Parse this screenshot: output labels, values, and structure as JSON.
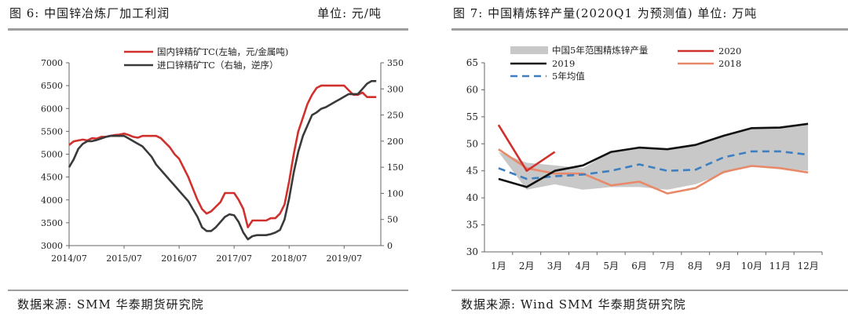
{
  "left_panel": {
    "title": "图 6:  中国锌冶炼厂加工利润",
    "unit": "单位:  元/吨",
    "source": "数据来源:  SMM  华泰期货研究院"
  },
  "right_panel": {
    "title": "图 7:  中国精炼锌产量(2020Q1 为预测值)  单位:  万吨",
    "source": "数据来源:  Wind SMM  华泰期货研究院"
  },
  "chart_data": [
    {
      "type": "line",
      "x_type": "date",
      "x_ticks": [
        "2014/07",
        "2015/07",
        "2016/07",
        "2017/07",
        "2018/07",
        "2019/07"
      ],
      "xlim": [
        "2014/07",
        "2020/03"
      ],
      "ylim_left": [
        3000,
        7000
      ],
      "yticks_left": [
        3000,
        3500,
        4000,
        4500,
        5000,
        5500,
        6000,
        6500,
        7000
      ],
      "ylim_right": [
        0,
        350
      ],
      "yticks_right": [
        0,
        50,
        100,
        150,
        200,
        250,
        300,
        350
      ],
      "right_axis_inverted_note": "逆序",
      "grid": false,
      "legend_position": "top",
      "series": [
        {
          "name": "国内锌精矿TC(左轴，元/金属吨)",
          "axis": "left",
          "color": "#d0312d",
          "points": [
            [
              "2014/07",
              5200
            ],
            [
              "2014/08",
              5280
            ],
            [
              "2014/09",
              5300
            ],
            [
              "2014/10",
              5320
            ],
            [
              "2014/11",
              5300
            ],
            [
              "2014/12",
              5350
            ],
            [
              "2015/01",
              5340
            ],
            [
              "2015/02",
              5380
            ],
            [
              "2015/03",
              5380
            ],
            [
              "2015/04",
              5400
            ],
            [
              "2015/05",
              5420
            ],
            [
              "2015/06",
              5430
            ],
            [
              "2015/07",
              5450
            ],
            [
              "2015/08",
              5420
            ],
            [
              "2015/09",
              5380
            ],
            [
              "2015/10",
              5360
            ],
            [
              "2015/11",
              5400
            ],
            [
              "2015/12",
              5400
            ],
            [
              "2016/01",
              5400
            ],
            [
              "2016/02",
              5400
            ],
            [
              "2016/03",
              5350
            ],
            [
              "2016/04",
              5250
            ],
            [
              "2016/05",
              5150
            ],
            [
              "2016/06",
              5000
            ],
            [
              "2016/07",
              4900
            ],
            [
              "2016/08",
              4700
            ],
            [
              "2016/09",
              4500
            ],
            [
              "2016/10",
              4250
            ],
            [
              "2016/11",
              4000
            ],
            [
              "2016/12",
              3800
            ],
            [
              "2017/01",
              3700
            ],
            [
              "2017/02",
              3750
            ],
            [
              "2017/03",
              3850
            ],
            [
              "2017/04",
              3950
            ],
            [
              "2017/05",
              4150
            ],
            [
              "2017/06",
              4150
            ],
            [
              "2017/07",
              4150
            ],
            [
              "2017/08",
              4000
            ],
            [
              "2017/09",
              3800
            ],
            [
              "2017/10",
              3400
            ],
            [
              "2017/11",
              3550
            ],
            [
              "2017/12",
              3550
            ],
            [
              "2018/01",
              3550
            ],
            [
              "2018/02",
              3550
            ],
            [
              "2018/03",
              3600
            ],
            [
              "2018/04",
              3600
            ],
            [
              "2018/05",
              3700
            ],
            [
              "2018/06",
              3900
            ],
            [
              "2018/07",
              4400
            ],
            [
              "2018/08",
              5000
            ],
            [
              "2018/09",
              5500
            ],
            [
              "2018/10",
              5800
            ],
            [
              "2018/11",
              6100
            ],
            [
              "2018/12",
              6300
            ],
            [
              "2019/01",
              6450
            ],
            [
              "2019/02",
              6500
            ],
            [
              "2019/03",
              6500
            ],
            [
              "2019/04",
              6500
            ],
            [
              "2019/05",
              6500
            ],
            [
              "2019/06",
              6500
            ],
            [
              "2019/07",
              6500
            ],
            [
              "2019/08",
              6400
            ],
            [
              "2019/09",
              6300
            ],
            [
              "2019/10",
              6300
            ],
            [
              "2019/11",
              6350
            ],
            [
              "2019/12",
              6250
            ],
            [
              "2020/01",
              6250
            ],
            [
              "2020/02",
              6250
            ]
          ]
        },
        {
          "name": "进口锌精矿TC（右轴，逆序）",
          "axis": "right",
          "color": "#3a3a3a",
          "points": [
            [
              "2014/07",
              150
            ],
            [
              "2014/08",
              165
            ],
            [
              "2014/09",
              185
            ],
            [
              "2014/10",
              195
            ],
            [
              "2014/11",
              200
            ],
            [
              "2014/12",
              200
            ],
            [
              "2015/01",
              202
            ],
            [
              "2015/02",
              205
            ],
            [
              "2015/03",
              208
            ],
            [
              "2015/04",
              210
            ],
            [
              "2015/05",
              210
            ],
            [
              "2015/06",
              210
            ],
            [
              "2015/07",
              210
            ],
            [
              "2015/08",
              205
            ],
            [
              "2015/09",
              200
            ],
            [
              "2015/10",
              195
            ],
            [
              "2015/11",
              190
            ],
            [
              "2015/12",
              180
            ],
            [
              "2016/01",
              170
            ],
            [
              "2016/02",
              155
            ],
            [
              "2016/03",
              145
            ],
            [
              "2016/04",
              135
            ],
            [
              "2016/05",
              125
            ],
            [
              "2016/06",
              115
            ],
            [
              "2016/07",
              105
            ],
            [
              "2016/08",
              95
            ],
            [
              "2016/09",
              85
            ],
            [
              "2016/10",
              70
            ],
            [
              "2016/11",
              55
            ],
            [
              "2016/12",
              35
            ],
            [
              "2017/01",
              28
            ],
            [
              "2017/02",
              28
            ],
            [
              "2017/03",
              35
            ],
            [
              "2017/04",
              45
            ],
            [
              "2017/05",
              55
            ],
            [
              "2017/06",
              60
            ],
            [
              "2017/07",
              58
            ],
            [
              "2017/08",
              45
            ],
            [
              "2017/09",
              25
            ],
            [
              "2017/10",
              12
            ],
            [
              "2017/11",
              18
            ],
            [
              "2017/12",
              20
            ],
            [
              "2018/01",
              20
            ],
            [
              "2018/02",
              20
            ],
            [
              "2018/03",
              22
            ],
            [
              "2018/04",
              25
            ],
            [
              "2018/05",
              30
            ],
            [
              "2018/06",
              50
            ],
            [
              "2018/07",
              90
            ],
            [
              "2018/08",
              140
            ],
            [
              "2018/09",
              180
            ],
            [
              "2018/10",
              210
            ],
            [
              "2018/11",
              230
            ],
            [
              "2018/12",
              250
            ],
            [
              "2019/01",
              255
            ],
            [
              "2019/02",
              262
            ],
            [
              "2019/03",
              265
            ],
            [
              "2019/04",
              270
            ],
            [
              "2019/05",
              275
            ],
            [
              "2019/06",
              280
            ],
            [
              "2019/07",
              285
            ],
            [
              "2019/08",
              290
            ],
            [
              "2019/09",
              290
            ],
            [
              "2019/10",
              290
            ],
            [
              "2019/11",
              300
            ],
            [
              "2019/12",
              310
            ],
            [
              "2020/01",
              315
            ],
            [
              "2020/02",
              315
            ]
          ]
        }
      ]
    },
    {
      "type": "line",
      "categories": [
        "1月",
        "2月",
        "3月",
        "4月",
        "5月",
        "6月",
        "7月",
        "8月",
        "9月",
        "10月",
        "11月",
        "12月"
      ],
      "ylim": [
        30,
        65
      ],
      "yticks": [
        30,
        35,
        40,
        45,
        50,
        55,
        60,
        65
      ],
      "grid": false,
      "legend_position": "top",
      "band": {
        "name": "中国5年范围精炼锌产量",
        "color": "#c8c8c8",
        "lower": [
          48.5,
          41.5,
          42.5,
          41.5,
          42,
          42,
          41.5,
          42.5,
          44.5,
          46,
          45.5,
          45
        ],
        "upper": [
          48.5,
          46.5,
          46,
          45.5,
          48.5,
          49.5,
          49,
          50,
          51.5,
          53,
          53,
          53.5
        ]
      },
      "series": [
        {
          "name": "2020",
          "color": "#d0312d",
          "style": "solid",
          "values": [
            53.5,
            45,
            48.5,
            null,
            null,
            null,
            null,
            null,
            null,
            null,
            null,
            null
          ]
        },
        {
          "name": "2019",
          "color": "#111111",
          "style": "solid",
          "values": [
            43.5,
            42,
            45,
            46,
            48.5,
            49.3,
            49,
            49.8,
            51.5,
            52.9,
            53,
            53.7
          ]
        },
        {
          "name": "2018",
          "color": "#e8896a",
          "style": "solid",
          "values": [
            49,
            45.5,
            44.5,
            44.5,
            42.3,
            43,
            40.8,
            41.8,
            44.8,
            45.9,
            45.5,
            44.7
          ]
        },
        {
          "name": "5年均值",
          "color": "#3d7fc1",
          "style": "dashed",
          "values": [
            45.5,
            43.5,
            44,
            44.3,
            45,
            46.2,
            45,
            45.2,
            47.5,
            48.6,
            48.6,
            48
          ]
        }
      ]
    }
  ]
}
